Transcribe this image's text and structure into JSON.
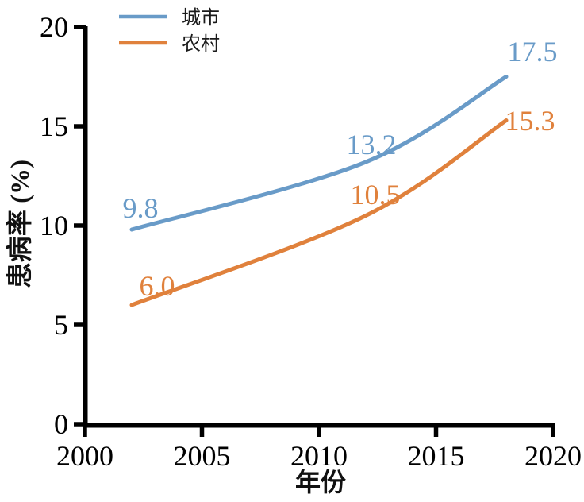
{
  "chart_data": {
    "type": "line",
    "title": "",
    "xlabel": "年份",
    "ylabel": "患病率 (%)",
    "xlim": [
      2000,
      2020
    ],
    "ylim": [
      0,
      20
    ],
    "x_ticks": [
      "2000",
      "2005",
      "2010",
      "2015",
      "2020"
    ],
    "x_tick_values": [
      2000,
      2005,
      2010,
      2015,
      2020
    ],
    "y_ticks": [
      "0",
      "5",
      "10",
      "15",
      "20"
    ],
    "y_tick_values": [
      0,
      5,
      10,
      15,
      20
    ],
    "grid": false,
    "legend_position": "top-left",
    "x": [
      2002,
      2012,
      2018
    ],
    "series": [
      {
        "name": "城市",
        "color": "#699BC8",
        "values": [
          9.8,
          13.2,
          17.5
        ],
        "point_labels": [
          "9.8",
          "13.2",
          "17.5"
        ]
      },
      {
        "name": "农村",
        "color": "#E0813C",
        "values": [
          6.0,
          10.5,
          15.3
        ],
        "point_labels": [
          "6.0",
          "10.5",
          "15.3"
        ]
      }
    ]
  },
  "colors": {
    "axis": "#000000",
    "urban_line": "#699BC8",
    "rural_line": "#E0813C",
    "background": "#ffffff"
  }
}
